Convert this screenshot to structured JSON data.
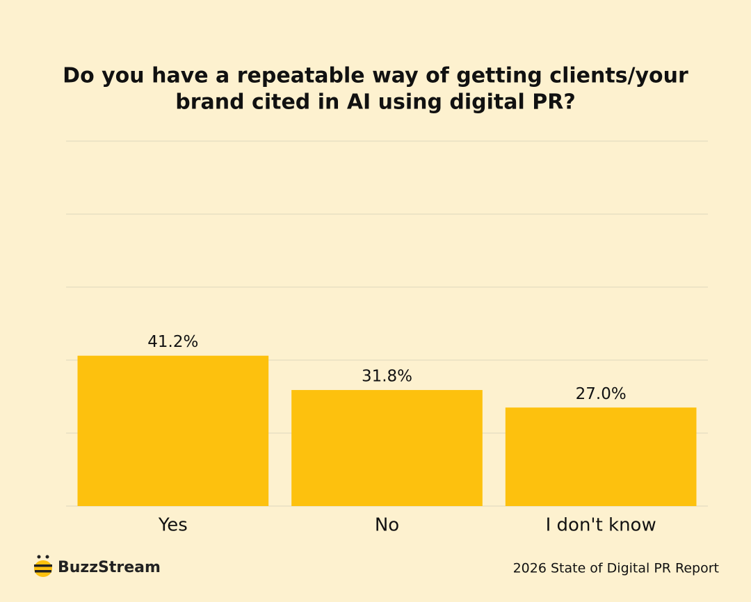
{
  "chart_data": {
    "type": "bar",
    "title_lines": [
      "Do you have a repeatable way of getting clients/your",
      "brand cited in AI using digital PR?"
    ],
    "categories": [
      "Yes",
      "No",
      "I don't know"
    ],
    "values": [
      41.2,
      31.8,
      27.0
    ],
    "value_labels": [
      "41.2%",
      "31.8%",
      "27.0%"
    ],
    "color": "#fdc10e",
    "ylim": [
      0,
      100
    ],
    "yticks": [
      0,
      20,
      40,
      60,
      80,
      100
    ],
    "grid": true,
    "brand": "BuzzStream",
    "source": "2026 State of Digital PR Report"
  }
}
